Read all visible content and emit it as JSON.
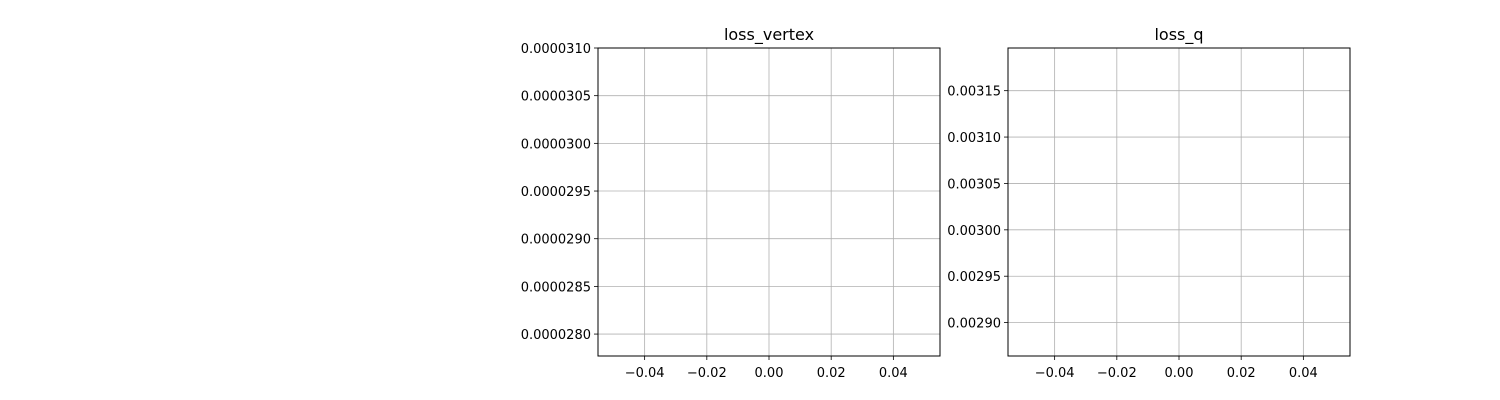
{
  "chart_data": [
    {
      "type": "line",
      "title": "loss_vertex",
      "xlabel": "",
      "ylabel": "",
      "xlim": [
        -0.055,
        0.055
      ],
      "ylim": [
        2.777e-05,
        3.1e-05
      ],
      "xticks": [
        -0.04,
        -0.02,
        0.0,
        0.02,
        0.04
      ],
      "xtick_labels": [
        "−0.04",
        "−0.02",
        "0.00",
        "0.02",
        "0.04"
      ],
      "yticks": [
        2.8e-05,
        2.85e-05,
        2.9e-05,
        2.95e-05,
        3e-05,
        3.05e-05,
        3.1e-05
      ],
      "ytick_labels": [
        "0.0000280",
        "0.0000285",
        "0.0000290",
        "0.0000295",
        "0.0000300",
        "0.0000305",
        "0.0000310"
      ],
      "grid": true,
      "series": []
    },
    {
      "type": "line",
      "title": "loss_q",
      "xlabel": "",
      "ylabel": "",
      "xlim": [
        -0.055,
        0.055
      ],
      "ylim": [
        0.002864,
        0.003196
      ],
      "xticks": [
        -0.04,
        -0.02,
        0.0,
        0.02,
        0.04
      ],
      "xtick_labels": [
        "−0.04",
        "−0.02",
        "0.00",
        "0.02",
        "0.04"
      ],
      "yticks": [
        0.0029,
        0.00295,
        0.003,
        0.00305,
        0.0031,
        0.00315
      ],
      "ytick_labels": [
        "0.00290",
        "0.00295",
        "0.00300",
        "0.00305",
        "0.00310",
        "0.00315"
      ],
      "grid": true,
      "series": []
    }
  ]
}
